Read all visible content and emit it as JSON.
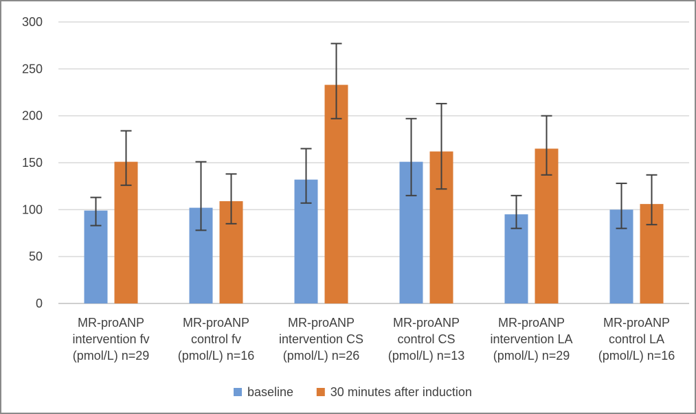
{
  "chart_data": {
    "type": "bar",
    "title": "",
    "xlabel": "",
    "ylabel": "",
    "ylim": [
      0,
      300
    ],
    "yticks": [
      0,
      50,
      100,
      150,
      200,
      250,
      300
    ],
    "grid": true,
    "legend_position": "bottom",
    "categories": [
      [
        "MR-proANP",
        "intervention fv",
        "(pmol/L) n=29"
      ],
      [
        "MR-proANP",
        "control fv",
        "(pmol/L) n=16"
      ],
      [
        "MR-proANP",
        "intervention CS",
        "(pmol/L) n=26"
      ],
      [
        "MR-proANP",
        "control CS",
        "(pmol/L) n=13"
      ],
      [
        "MR-proANP",
        "intervention LA",
        "(pmol/L) n=29"
      ],
      [
        "MR-proANP",
        "control LA",
        "(pmol/L) n=16"
      ]
    ],
    "series": [
      {
        "name": "baseline",
        "color": "#6f9bd5",
        "values": [
          99,
          102,
          132,
          151,
          95,
          100
        ],
        "error_low": [
          83,
          78,
          107,
          115,
          80,
          80
        ],
        "error_high": [
          113,
          151,
          165,
          197,
          115,
          128
        ]
      },
      {
        "name": "30 minutes after induction",
        "color": "#db7b35",
        "values": [
          151,
          109,
          233,
          162,
          165,
          106
        ],
        "error_low": [
          126,
          85,
          197,
          122,
          137,
          84
        ],
        "error_high": [
          184,
          138,
          277,
          213,
          200,
          137
        ]
      }
    ],
    "colors": {
      "grid": "#d9d9d9",
      "axis": "#bfbfbf",
      "error_bar": "#404040",
      "text": "#404040"
    }
  }
}
